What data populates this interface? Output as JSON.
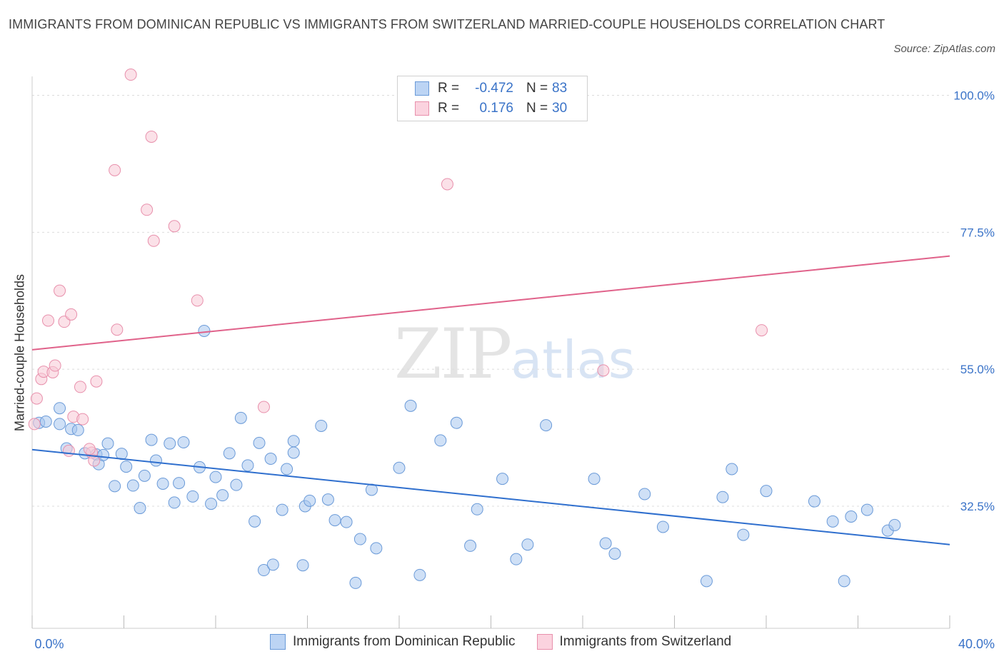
{
  "title": "IMMIGRANTS FROM DOMINICAN REPUBLIC VS IMMIGRANTS FROM SWITZERLAND MARRIED-COUPLE HOUSEHOLDS CORRELATION CHART",
  "source": "Source: ZipAtlas.com",
  "watermark": {
    "zip": "ZIP",
    "atlas": "atlas"
  },
  "legend": {
    "rows": [
      {
        "r_label": "R =",
        "r_value": "-0.472",
        "n_label": "N =",
        "n_value": "83"
      },
      {
        "r_label": "R =",
        "r_value": "0.176",
        "n_label": "N =",
        "n_value": "30"
      }
    ]
  },
  "chart_data": {
    "type": "scatter",
    "title": "IMMIGRANTS FROM DOMINICAN REPUBLIC VS IMMIGRANTS FROM SWITZERLAND MARRIED-COUPLE HOUSEHOLDS CORRELATION CHART",
    "xlabel": "",
    "ylabel": "Married-couple Households",
    "xlim": [
      0,
      40
    ],
    "ylim": [
      12,
      102
    ],
    "x_tick_labels": [
      "0.0%",
      "40.0%"
    ],
    "y_ticks": [
      32.5,
      55.0,
      77.5,
      100.0
    ],
    "y_tick_labels": [
      "32.5%",
      "55.0%",
      "77.5%",
      "100.0%"
    ],
    "series": [
      {
        "name": "Immigrants from Dominican Republic",
        "color": "#a8c6ee",
        "stroke": "#6a9ad8",
        "trend_color": "#2f6fce",
        "trend": {
          "x": [
            0,
            40
          ],
          "y": [
            41.8,
            26.2
          ]
        },
        "points": [
          [
            0.3,
            46.2
          ],
          [
            0.6,
            46.4
          ],
          [
            1.2,
            46.0
          ],
          [
            1.2,
            48.6
          ],
          [
            1.7,
            45.2
          ],
          [
            2.0,
            45.0
          ],
          [
            1.5,
            42.0
          ],
          [
            2.3,
            41.2
          ],
          [
            2.8,
            41.0
          ],
          [
            2.9,
            39.4
          ],
          [
            3.1,
            40.9
          ],
          [
            3.3,
            42.8
          ],
          [
            3.6,
            35.8
          ],
          [
            3.9,
            41.1
          ],
          [
            4.1,
            39.0
          ],
          [
            4.4,
            35.9
          ],
          [
            4.7,
            32.2
          ],
          [
            4.9,
            37.5
          ],
          [
            5.2,
            43.4
          ],
          [
            5.4,
            40.0
          ],
          [
            5.7,
            36.2
          ],
          [
            6.0,
            42.8
          ],
          [
            6.2,
            33.1
          ],
          [
            6.4,
            36.3
          ],
          [
            6.6,
            43.0
          ],
          [
            7.0,
            34.1
          ],
          [
            7.3,
            38.9
          ],
          [
            7.5,
            61.3
          ],
          [
            7.8,
            32.9
          ],
          [
            8.0,
            37.3
          ],
          [
            8.3,
            34.3
          ],
          [
            8.6,
            41.2
          ],
          [
            8.9,
            36.0
          ],
          [
            9.1,
            47.0
          ],
          [
            9.4,
            39.2
          ],
          [
            9.7,
            30.0
          ],
          [
            9.9,
            42.9
          ],
          [
            10.1,
            22.0
          ],
          [
            10.4,
            40.3
          ],
          [
            10.5,
            22.9
          ],
          [
            10.9,
            31.9
          ],
          [
            11.1,
            38.6
          ],
          [
            11.4,
            43.2
          ],
          [
            11.4,
            41.3
          ],
          [
            11.8,
            22.8
          ],
          [
            11.9,
            32.5
          ],
          [
            12.1,
            33.4
          ],
          [
            12.6,
            45.7
          ],
          [
            12.9,
            33.6
          ],
          [
            13.2,
            30.2
          ],
          [
            13.7,
            29.9
          ],
          [
            14.1,
            19.9
          ],
          [
            14.3,
            27.1
          ],
          [
            14.8,
            35.2
          ],
          [
            15.0,
            25.6
          ],
          [
            16.0,
            38.8
          ],
          [
            16.5,
            49.0
          ],
          [
            16.9,
            21.2
          ],
          [
            17.8,
            43.3
          ],
          [
            18.5,
            46.2
          ],
          [
            19.4,
            32.0
          ],
          [
            19.1,
            26.0
          ],
          [
            20.5,
            37.0
          ],
          [
            21.1,
            23.8
          ],
          [
            21.6,
            26.2
          ],
          [
            22.4,
            45.8
          ],
          [
            24.5,
            37.0
          ],
          [
            25.0,
            26.4
          ],
          [
            25.4,
            24.7
          ],
          [
            26.7,
            34.5
          ],
          [
            27.5,
            29.1
          ],
          [
            29.4,
            20.2
          ],
          [
            30.1,
            34.0
          ],
          [
            30.5,
            38.6
          ],
          [
            31.0,
            27.8
          ],
          [
            32.0,
            35.0
          ],
          [
            34.1,
            33.3
          ],
          [
            34.9,
            30.0
          ],
          [
            35.4,
            20.2
          ],
          [
            36.4,
            31.9
          ],
          [
            35.7,
            30.8
          ],
          [
            37.3,
            28.5
          ],
          [
            37.6,
            29.4
          ]
        ]
      },
      {
        "name": "Immigrants from Switzerland",
        "color": "#f8c8d6",
        "stroke": "#e890ac",
        "trend_color": "#e0628a",
        "trend": {
          "x": [
            0,
            40
          ],
          "y": [
            58.2,
            73.6
          ]
        },
        "points": [
          [
            0.1,
            46.0
          ],
          [
            0.2,
            50.2
          ],
          [
            0.4,
            53.4
          ],
          [
            0.5,
            54.6
          ],
          [
            0.7,
            63.0
          ],
          [
            0.9,
            54.5
          ],
          [
            1.0,
            55.6
          ],
          [
            1.2,
            67.9
          ],
          [
            1.4,
            62.8
          ],
          [
            1.7,
            64.0
          ],
          [
            1.8,
            47.2
          ],
          [
            2.1,
            52.1
          ],
          [
            2.2,
            46.8
          ],
          [
            2.6,
            41.3
          ],
          [
            2.7,
            40.0
          ],
          [
            2.8,
            53.0
          ],
          [
            3.7,
            61.5
          ],
          [
            3.6,
            87.7
          ],
          [
            4.3,
            103.4
          ],
          [
            5.0,
            81.2
          ],
          [
            5.2,
            93.2
          ],
          [
            5.3,
            76.1
          ],
          [
            6.2,
            78.5
          ],
          [
            7.2,
            66.3
          ],
          [
            10.1,
            48.8
          ],
          [
            18.1,
            85.4
          ],
          [
            24.9,
            54.8
          ],
          [
            31.8,
            61.4
          ],
          [
            1.6,
            41.6
          ],
          [
            2.5,
            41.9
          ]
        ]
      }
    ]
  }
}
